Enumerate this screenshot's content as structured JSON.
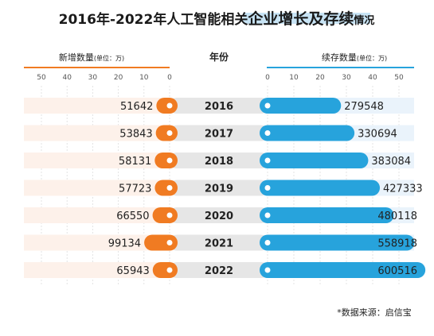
{
  "title": {
    "part1": "2016年-2022年人工智能相关",
    "part2": "企业增长及存续",
    "part3": "情况"
  },
  "headers": {
    "left_main": "新增数量",
    "left_unit": "(单位：万)",
    "center": "年份",
    "right_main": "续存数量",
    "right_unit": "(单位：万)"
  },
  "left_axis": {
    "ticks": [
      "50",
      "40",
      "30",
      "20",
      "10",
      "0"
    ]
  },
  "right_axis": {
    "ticks": [
      "0",
      "10",
      "20",
      "30",
      "40",
      "50"
    ]
  },
  "source": "*数据来源：启信宝",
  "colors": {
    "orange": "#f07b22",
    "blue": "#27a3dc",
    "row_left": "#fdf1ea",
    "row_right": "#eaf3fb",
    "pill": "#e6e6e6",
    "highlight": "#c8e4f5"
  },
  "chart_data": {
    "type": "bar",
    "categories": [
      "2016",
      "2017",
      "2018",
      "2019",
      "2020",
      "2021",
      "2022"
    ],
    "series": [
      {
        "name": "新增数量",
        "values": [
          51642,
          53843,
          58131,
          57723,
          66550,
          99134,
          65943
        ]
      },
      {
        "name": "续存数量",
        "values": [
          279548,
          330694,
          383084,
          427333,
          480118,
          558918,
          600516
        ]
      }
    ],
    "left_axis_range": [
      0,
      50
    ],
    "right_axis_range": [
      0,
      55
    ]
  }
}
